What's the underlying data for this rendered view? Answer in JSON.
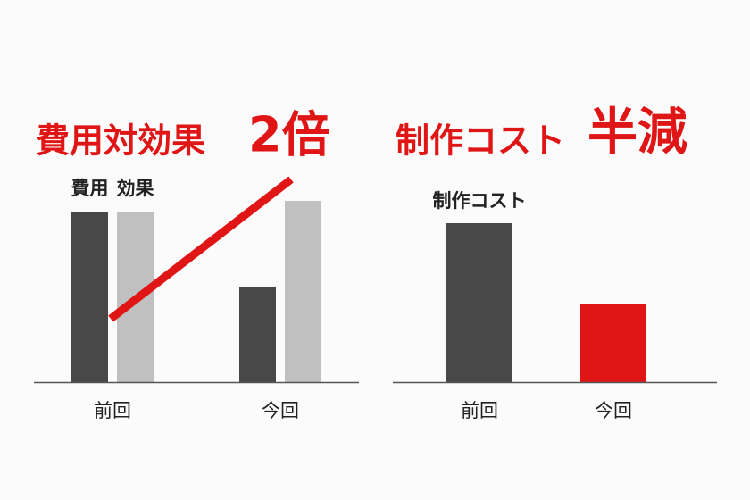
{
  "chart_data": [
    {
      "type": "bar",
      "title": "費用対効果",
      "title_emphasis": "2倍",
      "categories": [
        "前回",
        "今回"
      ],
      "series": [
        {
          "name": "費用",
          "color": "#484848",
          "values": [
            190,
            107
          ]
        },
        {
          "name": "効果",
          "color": "#c0c0c0",
          "values": [
            190,
            203
          ]
        }
      ],
      "ylim": [
        0,
        200
      ],
      "accent_color": "#e01515"
    },
    {
      "type": "bar",
      "title": "制作コスト",
      "title_emphasis": "半減",
      "categories": [
        "前回",
        "今回"
      ],
      "series": [
        {
          "name": "制作コスト",
          "color": "#484848",
          "colors": [
            "#484848",
            "#e01515"
          ],
          "values": [
            178,
            88
          ]
        }
      ],
      "ylim": [
        0,
        200
      ],
      "accent_color": "#e01515"
    }
  ]
}
